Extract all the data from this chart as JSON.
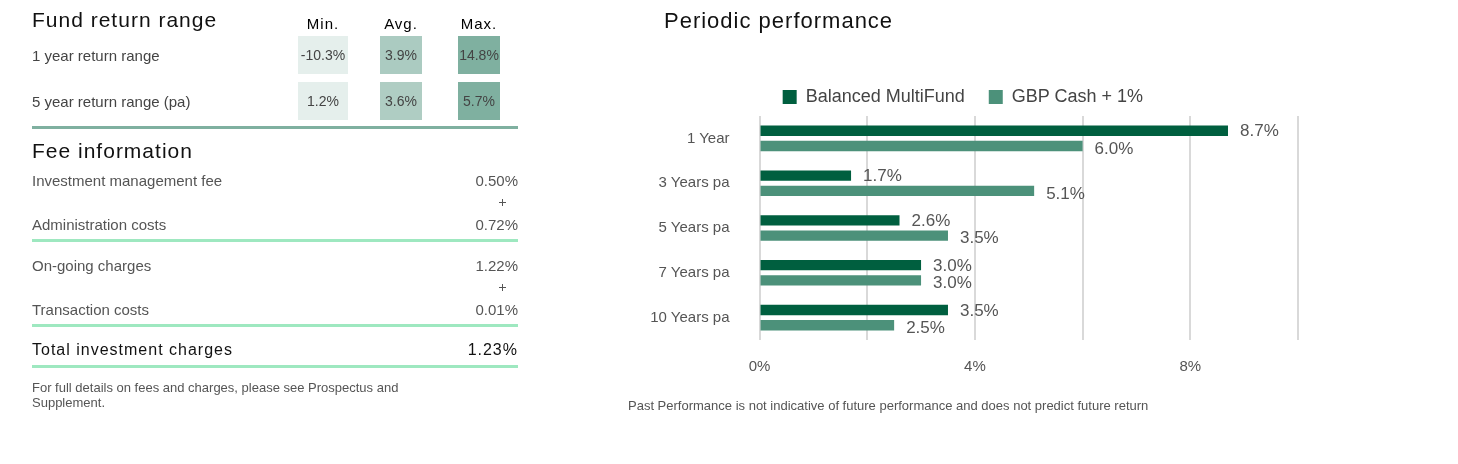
{
  "chart_data": [
    {
      "type": "heatmap",
      "title": "Fund return range",
      "categories": [
        "Min.",
        "Avg.",
        "Max."
      ],
      "y_categories": [
        "1 year return range",
        "5 year return range (pa)"
      ],
      "cells": [
        [
          -10.3,
          3.9,
          14.8
        ],
        [
          1.2,
          3.6,
          5.7
        ]
      ],
      "cell_labels": [
        [
          "-10.3%",
          "3.9%",
          "14.8%"
        ],
        [
          "1.2%",
          "3.6%",
          "5.7%"
        ]
      ]
    },
    {
      "type": "other",
      "title": "Fee information",
      "categories": [
        "Investment management fee",
        "Administration costs",
        "On-going charges",
        "Transaction costs",
        "Total investment charges"
      ],
      "value_labels": [
        "0.50%",
        "0.72%",
        "1.22%",
        "0.01%",
        "1.23%"
      ],
      "annotations": [
        "For full details on fees and charges, please see Prospectus and Supplement."
      ]
    },
    {
      "type": "bar",
      "orientation": "horizontal",
      "title": "Periodic performance",
      "categories": [
        "1 Year",
        "3 Years pa",
        "5 Years pa",
        "7 Years pa",
        "10 Years pa"
      ],
      "series": [
        {
          "name": "Balanced MultiFund",
          "color": "#005f3f",
          "values": [
            8.7,
            1.7,
            2.6,
            3.0,
            3.5
          ],
          "value_labels": [
            "8.7%",
            "1.7%",
            "2.6%",
            "3.0%",
            "3.5%"
          ]
        },
        {
          "name": "GBP Cash + 1%",
          "color": "#4c917a",
          "values": [
            6.0,
            5.1,
            3.5,
            3.0,
            2.5
          ],
          "value_labels": [
            "6.0%",
            "5.1%",
            "3.5%",
            "3.0%",
            "2.5%"
          ]
        }
      ],
      "xlim": [
        0,
        10
      ],
      "xticks": [
        {
          "value": 0,
          "label": "0%"
        },
        {
          "value": 2,
          "label": null
        },
        {
          "value": 4,
          "label": "4%"
        },
        {
          "value": 6,
          "label": null
        },
        {
          "value": 8,
          "label": "8%"
        },
        {
          "value": 10,
          "label": null
        }
      ],
      "grid": "x",
      "legend": "top",
      "annotations": [
        "Past Performance is not indicative of future performance and does not predict future return"
      ]
    }
  ]
}
